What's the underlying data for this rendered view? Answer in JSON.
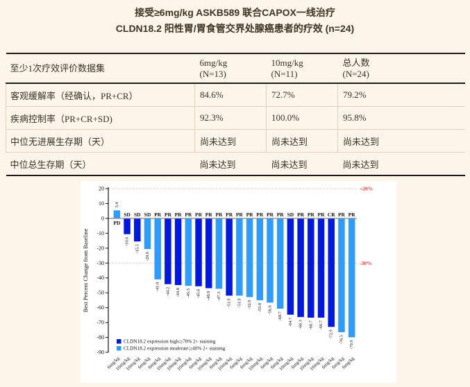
{
  "colors": {
    "page_bg": "#fdf5ea",
    "panel_bg": "#ffffff",
    "text": "#3a3126",
    "table_border_dark": "#1b1b1b",
    "table_border_light": "#ded1bd",
    "bar_high": "#0018e0",
    "bar_moderate": "#2f9bfd",
    "ref_line": "#ffb3b3",
    "ref_label": "#f93434",
    "zero_line": "#8a8a8a"
  },
  "title": {
    "line1": "接受≥6mg/kg ASKB589 联合CAPOX一线治疗",
    "line2": "CLDN18.2 阳性胃/胃食管交界处腺癌患者的疗效 (n=24)"
  },
  "table": {
    "header": {
      "dataset": "至少1次疗效评价数据集",
      "cols": [
        {
          "label": "6mg/kg",
          "sub": "(N=13)"
        },
        {
          "label": "10mg/kg",
          "sub": "(N=11)"
        },
        {
          "label": "总人数",
          "sub": "(N=24)"
        }
      ]
    },
    "rows": [
      {
        "label": "客观缓解率（经确认，PR+CR）",
        "values": [
          "84.6%",
          "72.7%",
          "79.2%"
        ]
      },
      {
        "label": "疾病控制率（PR+CR+SD)",
        "values": [
          "92.3%",
          "100.0%",
          "95.8%"
        ]
      },
      {
        "label": "中位无进展生存期（天）",
        "values": [
          "尚未达到",
          "尚未达到",
          "尚未达到"
        ]
      },
      {
        "label": "中位总生存期（天）",
        "values": [
          "尚未达到",
          "尚未达到",
          "尚未达到"
        ]
      }
    ]
  },
  "chart_data": {
    "type": "bar",
    "subtype": "waterfall",
    "title": "",
    "xlabel": "",
    "ylabel": "Best Percent Change from Baseline",
    "ylim": [
      -90,
      20
    ],
    "yticks": [
      20,
      10,
      0,
      -10,
      -20,
      -30,
      -40,
      -50,
      -60,
      -70,
      -80,
      -90
    ],
    "grid": false,
    "legend_position": "bottom-left",
    "reference_lines": [
      {
        "value": 20,
        "label": "+20%"
      },
      {
        "value": -30,
        "label": "-30%"
      }
    ],
    "legend": [
      {
        "key": "high",
        "label": "CLDN18.2 expression high:≥70% 2+ staining",
        "color": "#0018e0"
      },
      {
        "key": "moderate",
        "label": "CLDN18.2 expression moderate:≥40% 2+ staining",
        "color": "#2f9bfd"
      }
    ],
    "bars": [
      {
        "value": 5.4,
        "response": "PD",
        "dose": "6mg/kg",
        "group": "moderate"
      },
      {
        "value": -10.6,
        "response": "SD",
        "dose": "10mg/kg",
        "group": "high"
      },
      {
        "value": -15.5,
        "response": "SD",
        "dose": "10mg/kg",
        "group": "high"
      },
      {
        "value": -20.6,
        "response": "SD",
        "dose": "6mg/kg",
        "group": "moderate"
      },
      {
        "value": -41.0,
        "response": "PR",
        "dose": "6mg/kg",
        "group": "moderate"
      },
      {
        "value": -44.2,
        "response": "PR",
        "dose": "10mg/kg",
        "group": "high"
      },
      {
        "value": -44.8,
        "response": "PR",
        "dose": "10mg/kg",
        "group": "high"
      },
      {
        "value": -45.3,
        "response": "PR",
        "dose": "10mg/kg",
        "group": "moderate"
      },
      {
        "value": -45.6,
        "response": "PR",
        "dose": "6mg/kg",
        "group": "high"
      },
      {
        "value": -46.9,
        "response": "PR",
        "dose": "10mg/kg",
        "group": "high"
      },
      {
        "value": -47.3,
        "response": "PR",
        "dose": "6mg/kg",
        "group": "moderate"
      },
      {
        "value": -51.9,
        "response": "PR",
        "dose": "10mg/kg",
        "group": "high"
      },
      {
        "value": -51.9,
        "response": "PR",
        "dose": "6mg/kg",
        "group": "moderate"
      },
      {
        "value": -52.9,
        "response": "PR",
        "dose": "6mg/kg",
        "group": "moderate"
      },
      {
        "value": -55.0,
        "response": "PR",
        "dose": "10mg/kg",
        "group": "moderate"
      },
      {
        "value": -56.6,
        "response": "PR",
        "dose": "6mg/kg",
        "group": "moderate"
      },
      {
        "value": -60.7,
        "response": "PR",
        "dose": "6mg/kg",
        "group": "moderate"
      },
      {
        "value": -64.7,
        "response": "SD",
        "dose": "10mg/kg",
        "group": "high"
      },
      {
        "value": -66.3,
        "response": "PR",
        "dose": "6mg/kg",
        "group": "high"
      },
      {
        "value": -66.7,
        "response": "PR",
        "dose": "10mg/kg",
        "group": "high"
      },
      {
        "value": -66.7,
        "response": "PR",
        "dose": "10mg/kg",
        "group": "high"
      },
      {
        "value": -72.9,
        "response": "CR",
        "dose": "6mg/kg",
        "group": "high"
      },
      {
        "value": -76.5,
        "response": "PR",
        "dose": "6mg/kg",
        "group": "moderate"
      },
      {
        "value": -79.9,
        "response": "PR",
        "dose": "6mg/kg",
        "group": "moderate"
      }
    ]
  }
}
